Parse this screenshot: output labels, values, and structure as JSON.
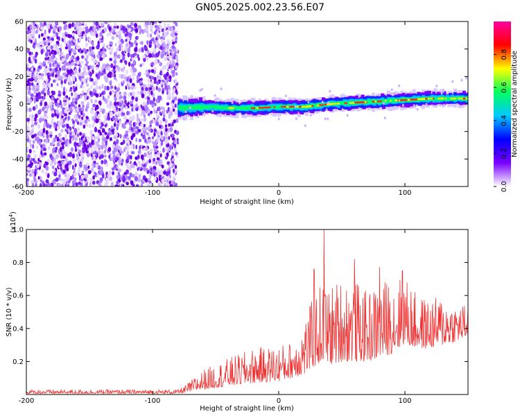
{
  "title": "GN05.2025.002.23.56.E07",
  "chart_data": [
    {
      "type": "heatmap",
      "name": "spectrogram",
      "xlabel": "Height of straight line (km)",
      "ylabel": "Frequency (Hz)",
      "xlim": [
        -200,
        150
      ],
      "ylim": [
        -60,
        60
      ],
      "xticks": [
        -200,
        -100,
        0,
        100
      ],
      "xtick_labels": [
        "-200",
        "-100",
        "0",
        "100"
      ],
      "yticks": [
        -60,
        -40,
        -20,
        0,
        20,
        40,
        60
      ],
      "ytick_labels": [
        "-60",
        "-40",
        "-20",
        "0",
        "20",
        "40",
        "60"
      ],
      "noise_region_x": [
        -200,
        -80
      ],
      "ridge": {
        "x": [
          -80,
          -60,
          -40,
          -20,
          0,
          20,
          40,
          60,
          80,
          100,
          120,
          150
        ],
        "freq": [
          -3,
          -2,
          -3,
          -3,
          -2,
          -2,
          0,
          1,
          2,
          3,
          4,
          4
        ]
      },
      "colorbar": {
        "label": "Normalized spectral amplitude",
        "range": [
          0,
          1
        ],
        "ticks": [
          0.0,
          0.2,
          0.4,
          0.6,
          0.8
        ],
        "tick_labels": [
          "0.0",
          "0.2",
          "0.4",
          "0.6",
          "0.8"
        ],
        "colors": [
          "#ffffff",
          "#7a00ff",
          "#0000ff",
          "#00c8ff",
          "#00ff60",
          "#ffff00",
          "#ff0000",
          "#ff00a0"
        ]
      }
    },
    {
      "type": "line",
      "name": "snr",
      "xlabel": "Height of straight line (km)",
      "ylabel": "SNR (10 * v/v)",
      "scale_label": "(x10",
      "scale_exponent": "4",
      "xlim": [
        -200,
        150
      ],
      "ylim": [
        0,
        1.0
      ],
      "xticks": [
        -200,
        -100,
        0,
        100
      ],
      "xtick_labels": [
        "-200",
        "-100",
        "0",
        "100"
      ],
      "yticks": [
        0.2,
        0.4,
        0.6,
        0.8,
        1.0
      ],
      "ytick_labels": [
        "0.2",
        "0.4",
        "0.6",
        "0.8",
        "1.0"
      ],
      "color": "#ee3333",
      "envelope": {
        "x": [
          -200,
          -80,
          -75,
          -60,
          -40,
          -20,
          0,
          10,
          20,
          25,
          30,
          35,
          40,
          50,
          60,
          70,
          80,
          90,
          100,
          110,
          120,
          130,
          140,
          150
        ],
        "low": [
          0.005,
          0.005,
          0.01,
          0.03,
          0.05,
          0.07,
          0.08,
          0.1,
          0.12,
          0.15,
          0.18,
          0.2,
          0.18,
          0.2,
          0.2,
          0.2,
          0.22,
          0.25,
          0.3,
          0.28,
          0.28,
          0.3,
          0.32,
          0.35
        ],
        "high": [
          0.03,
          0.03,
          0.05,
          0.15,
          0.22,
          0.28,
          0.3,
          0.32,
          0.45,
          0.55,
          0.62,
          0.7,
          0.65,
          0.72,
          0.7,
          0.62,
          0.68,
          0.72,
          0.72,
          0.6,
          0.58,
          0.6,
          0.55,
          0.55
        ]
      },
      "peaks": [
        {
          "x": 36,
          "y": 1.0
        },
        {
          "x": 60,
          "y": 0.82
        },
        {
          "x": 98,
          "y": 0.75
        },
        {
          "x": 28,
          "y": 0.76
        },
        {
          "x": 80,
          "y": 0.77
        }
      ]
    }
  ]
}
